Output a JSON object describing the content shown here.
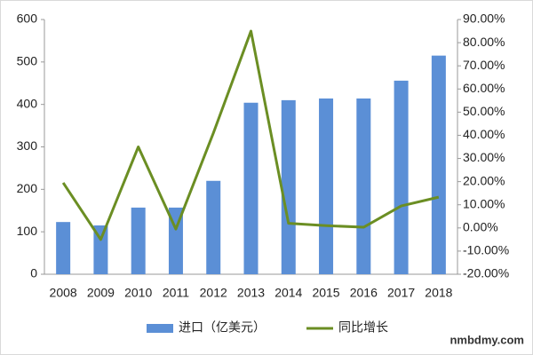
{
  "chart_data": {
    "type": "bar-line",
    "categories": [
      "2008",
      "2009",
      "2010",
      "2011",
      "2012",
      "2013",
      "2014",
      "2015",
      "2016",
      "2017",
      "2018"
    ],
    "series": [
      {
        "name": "进口（亿美元）",
        "type": "bar",
        "color": "#5b8fd6",
        "values": [
          123,
          115,
          157,
          157,
          220,
          404,
          410,
          414,
          414,
          456,
          515
        ]
      },
      {
        "name": "同比增长",
        "type": "line",
        "axis": "y2",
        "color": "#6b8e23",
        "values": [
          19.5,
          -5,
          35,
          -0.5,
          41,
          85,
          2,
          1,
          0.3,
          9.5,
          13.3
        ]
      }
    ],
    "ylim": [
      0,
      600
    ],
    "yticks": [
      0,
      100,
      200,
      300,
      400,
      500,
      600
    ],
    "y2lim": [
      -20,
      90
    ],
    "y2ticks": [
      {
        "value": -20,
        "label": "-20.00%"
      },
      {
        "value": -10,
        "label": "-10.00%"
      },
      {
        "value": 0,
        "label": "0.00%"
      },
      {
        "value": 10,
        "label": "10.00%"
      },
      {
        "value": 20,
        "label": "20.00%"
      },
      {
        "value": 30,
        "label": "30.00%"
      },
      {
        "value": 40,
        "label": "40.00%"
      },
      {
        "value": 50,
        "label": "50.00%"
      },
      {
        "value": 60,
        "label": "60.00%"
      },
      {
        "value": 70,
        "label": "70.00%"
      },
      {
        "value": 80,
        "label": "80.00%"
      },
      {
        "value": 90,
        "label": "90.00%"
      }
    ],
    "grid": false,
    "legend": "bottom",
    "watermark": "nmbdmy.com"
  }
}
